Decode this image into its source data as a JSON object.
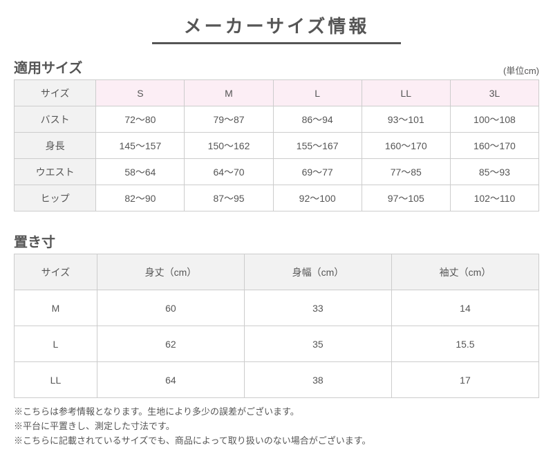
{
  "page_title": "メーカーサイズ情報",
  "unit_label": "(単位cm)",
  "text_color": "#555555",
  "border_color": "#cccccc",
  "row_header_bg": "#f2f2f2",
  "pink_header_bg": "#fceef5",
  "table1": {
    "title": "適用サイズ",
    "size_label": "サイズ",
    "sizes": [
      "S",
      "M",
      "L",
      "LL",
      "3L"
    ],
    "rows": [
      {
        "label": "バスト",
        "values": [
          "72～80",
          "79～87",
          "86～94",
          "93～101",
          "100～108"
        ]
      },
      {
        "label": "身長",
        "values": [
          "145～157",
          "150～162",
          "155～167",
          "160～170",
          "160～170"
        ]
      },
      {
        "label": "ウエスト",
        "values": [
          "58～64",
          "64～70",
          "69～77",
          "77～85",
          "85～93"
        ]
      },
      {
        "label": "ヒップ",
        "values": [
          "82～90",
          "87～95",
          "92～100",
          "97～105",
          "102～110"
        ]
      }
    ]
  },
  "table2": {
    "title": "置き寸",
    "headers": [
      "サイズ",
      "身丈（cm）",
      "身幅（cm）",
      "袖丈（cm）"
    ],
    "rows": [
      {
        "values": [
          "M",
          "60",
          "33",
          "14"
        ]
      },
      {
        "values": [
          "L",
          "62",
          "35",
          "15.5"
        ]
      },
      {
        "values": [
          "LL",
          "64",
          "38",
          "17"
        ]
      }
    ]
  },
  "notes": [
    "※こちらは参考情報となります。生地により多少の誤差がございます。",
    "※平台に平置きし、測定した寸法です。",
    "※こちらに記載されているサイズでも、商品によって取り扱いのない場合がございます。"
  ]
}
